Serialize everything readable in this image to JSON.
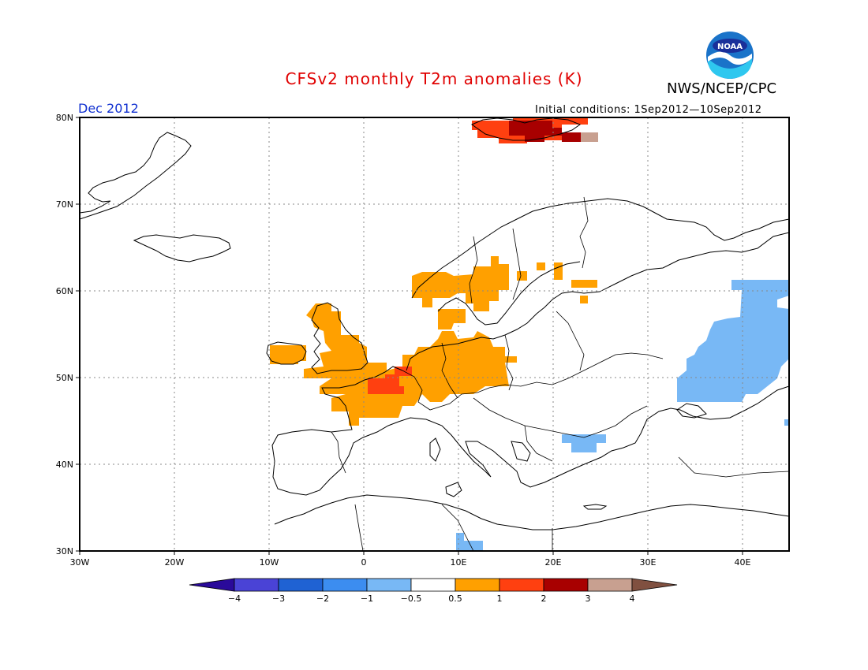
{
  "header": {
    "title": "CFSv2 monthly T2m anomalies (K)",
    "org": "NWS/NCEP/CPC",
    "logo_text": "NOAA",
    "month": "Dec 2012",
    "initial_conditions": "Initial conditions: 1Sep2012—10Sep2012"
  },
  "map": {
    "lon_range": [
      -30,
      45
    ],
    "lat_range": [
      30,
      80
    ],
    "lat_labels": [
      "80N",
      "70N",
      "60N",
      "50N",
      "40N",
      "30N"
    ],
    "lon_labels": [
      "30W",
      "20W",
      "10W",
      "0",
      "10E",
      "20E",
      "30E",
      "40E"
    ],
    "grid": "dotted"
  },
  "legend": {
    "tick_labels": [
      "−4",
      "−3",
      "−2",
      "−1",
      "−0.5",
      "0.5",
      "1",
      "2",
      "3",
      "4"
    ],
    "colors": [
      "#2a0a9a",
      "#4a43d6",
      "#1f62d3",
      "#3c8df0",
      "#78b8f5",
      "#ffffff",
      "#ffa000",
      "#ff4010",
      "#a80000",
      "#c8a090",
      "#805040"
    ]
  },
  "anomaly_colors": {
    "cold_1": "#78b8f5",
    "warm_1": "#ffa000",
    "warm_2": "#ff4010",
    "warm_3": "#a80000",
    "warm_4": "#c8a090"
  }
}
